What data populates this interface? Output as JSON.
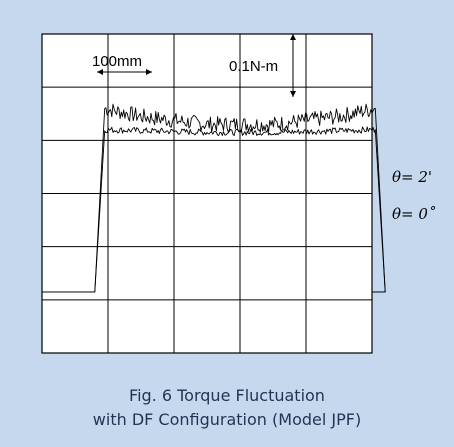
{
  "caption": {
    "line1": "Fig. 6 Torque Fluctuation",
    "line2": "with DF Configuration (Model JPF)"
  },
  "colors": {
    "background": "#c5d8ee",
    "plot_background": "#ffffff",
    "grid": "#000000",
    "trace": "#000000",
    "caption_text": "#1f3555"
  },
  "chart_data": {
    "type": "line",
    "title": "",
    "xlabel": "",
    "ylabel": "",
    "grid": true,
    "grid_divisions": {
      "x": 5,
      "y": 6
    },
    "scale_annotations": [
      {
        "name": "x-scale",
        "label": "100mm",
        "divisions": 1
      },
      {
        "name": "y-scale",
        "label": "0.1N-m",
        "divisions": 1
      }
    ],
    "series": [
      {
        "label": "θ= 2'",
        "baseline": -1.85,
        "rise_start": 0.8,
        "rise_end": 0.95,
        "fall_start": 5.05,
        "fall_end": 5.2,
        "profile": [
          {
            "x": 0.95,
            "y": 1.6
          },
          {
            "x": 1.5,
            "y": 1.45
          },
          {
            "x": 2.5,
            "y": 1.3
          },
          {
            "x": 3.5,
            "y": 1.3
          },
          {
            "x": 4.5,
            "y": 1.45
          },
          {
            "x": 5.05,
            "y": 1.6
          }
        ],
        "ripple": 0.15
      },
      {
        "label": "θ= 0˚",
        "baseline": -1.85,
        "rise_start": 0.8,
        "rise_end": 0.95,
        "fall_start": 5.05,
        "fall_end": 5.2,
        "profile": [
          {
            "x": 0.95,
            "y": 1.2
          },
          {
            "x": 2.5,
            "y": 1.15
          },
          {
            "x": 3.5,
            "y": 1.15
          },
          {
            "x": 5.05,
            "y": 1.2
          }
        ],
        "ripple": 0.06
      }
    ]
  }
}
